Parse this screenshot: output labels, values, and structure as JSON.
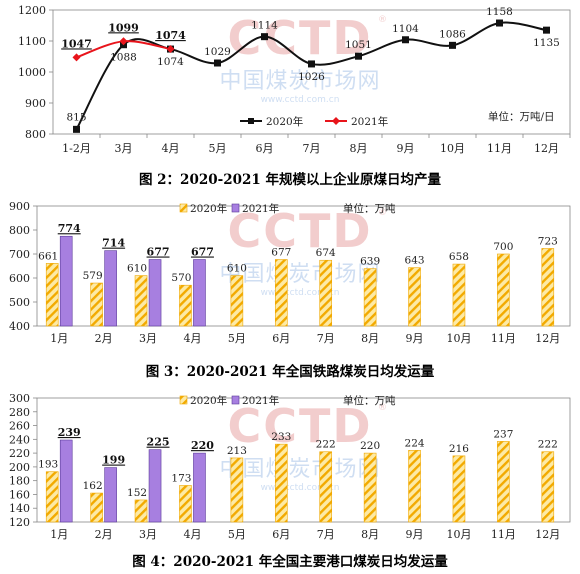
{
  "watermark": {
    "logo": "CCTD",
    "cn": "中国煤炭市场网",
    "url": "www.cctd.com.cn",
    "registered": "®"
  },
  "colors": {
    "line2020": "#111111",
    "line2021": "#e8141b",
    "bar2020_fill": "#fde9a0",
    "bar2020_stripe": "#f0a800",
    "bar2021_fill": "#a77fe0",
    "bar2021_stroke": "#5b3a9a",
    "watermark_red": "#e8a6a6",
    "watermark_blue": "#a8c4e8"
  },
  "chart_data": [
    {
      "type": "line",
      "caption": "图 2：2020-2021 年规模以上企业原煤日均产量",
      "unit": "单位：万吨/日",
      "categories": [
        "1-2月",
        "3月",
        "4月",
        "5月",
        "6月",
        "7月",
        "8月",
        "9月",
        "10月",
        "11月",
        "12月"
      ],
      "ylim": [
        800,
        1200
      ],
      "yticks": [
        800,
        900,
        1000,
        1100,
        1200
      ],
      "series": [
        {
          "name": "2020年",
          "values": [
            815,
            1088,
            1074,
            1029,
            1114,
            1026,
            1051,
            1104,
            1086,
            1158,
            1135
          ]
        },
        {
          "name": "2021年",
          "values": [
            1047,
            1099,
            1074,
            null,
            null,
            null,
            null,
            null,
            null,
            null,
            null
          ]
        }
      ]
    },
    {
      "type": "bar",
      "caption": "图 3：2020-2021 年全国铁路煤炭日均发运量",
      "unit": "单位：万吨",
      "categories": [
        "1月",
        "2月",
        "3月",
        "4月",
        "5月",
        "6月",
        "7月",
        "8月",
        "9月",
        "10月",
        "11月",
        "12月"
      ],
      "ylim": [
        400,
        900
      ],
      "yticks": [
        400,
        500,
        600,
        700,
        800,
        900
      ],
      "series": [
        {
          "name": "2020年",
          "values": [
            661,
            579,
            610,
            570,
            610,
            677,
            674,
            639,
            643,
            658,
            700,
            723
          ]
        },
        {
          "name": "2021年",
          "values": [
            774,
            714,
            677,
            677,
            null,
            null,
            null,
            null,
            null,
            null,
            null,
            null
          ]
        }
      ]
    },
    {
      "type": "bar",
      "caption": "图 4：2020-2021 年全国主要港口煤炭日均发运量",
      "unit": "单位：万吨",
      "categories": [
        "1月",
        "2月",
        "3月",
        "4月",
        "5月",
        "6月",
        "7月",
        "8月",
        "9月",
        "10月",
        "11月",
        "12月"
      ],
      "ylim": [
        120,
        300
      ],
      "yticks": [
        120,
        140,
        160,
        180,
        200,
        220,
        240,
        260,
        280,
        300
      ],
      "series": [
        {
          "name": "2020年",
          "values": [
            193,
            162,
            152,
            173,
            213,
            233,
            222,
            220,
            224,
            216,
            237,
            222
          ]
        },
        {
          "name": "2021年",
          "values": [
            239,
            199,
            225,
            220,
            null,
            null,
            null,
            null,
            null,
            null,
            null,
            null
          ]
        }
      ]
    }
  ]
}
